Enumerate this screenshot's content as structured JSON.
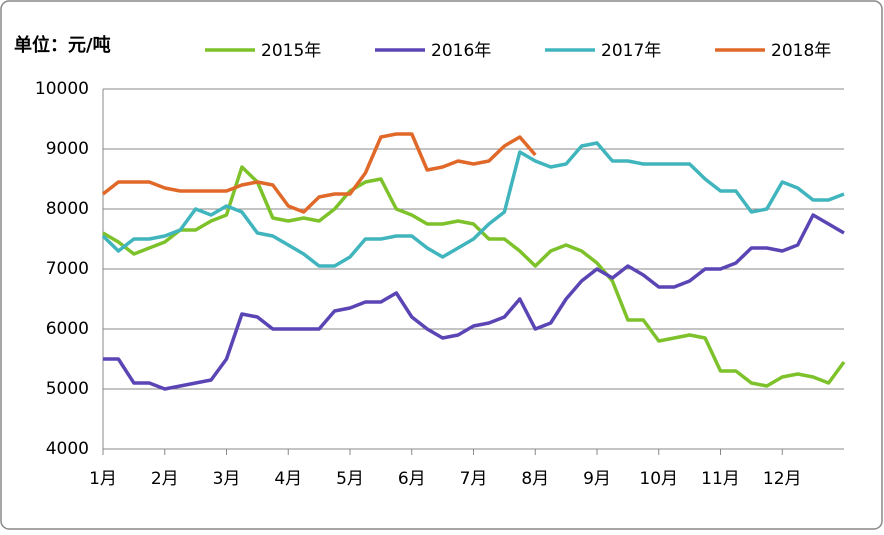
{
  "chart_data": {
    "type": "line",
    "y_label": "单位：元/吨",
    "categories": [
      "1月",
      null,
      null,
      null,
      "2月",
      null,
      null,
      null,
      "3月",
      null,
      null,
      null,
      "4月",
      null,
      null,
      null,
      "5月",
      null,
      null,
      null,
      "6月",
      null,
      null,
      null,
      "7月",
      null,
      null,
      null,
      "8月",
      null,
      null,
      null,
      "9月",
      null,
      null,
      null,
      "10月",
      null,
      null,
      null,
      "11月",
      null,
      null,
      null,
      "12月",
      null,
      null,
      null,
      null
    ],
    "series": [
      {
        "name": "2015年",
        "color": "#7dc22a",
        "values": [
          7600,
          7450,
          7250,
          7350,
          7450,
          7650,
          7650,
          7800,
          7900,
          8700,
          8450,
          7850,
          7800,
          7850,
          7800,
          8000,
          8300,
          8450,
          8500,
          8000,
          7900,
          7750,
          7750,
          7800,
          7750,
          7500,
          7500,
          7300,
          7050,
          7300,
          7400,
          7300,
          7100,
          6800,
          6150,
          6150,
          5800,
          5850,
          5900,
          5850,
          5300,
          5300,
          5100,
          5050,
          5200,
          5250,
          5200,
          5100,
          5450
        ]
      },
      {
        "name": "2016年",
        "color": "#5b45b5",
        "values": [
          5500,
          5500,
          5100,
          5100,
          5000,
          5050,
          5100,
          5150,
          5500,
          6250,
          6200,
          6000,
          6000,
          6000,
          6000,
          6300,
          6350,
          6450,
          6450,
          6600,
          6200,
          6000,
          5850,
          5900,
          6050,
          6100,
          6200,
          6500,
          6000,
          6100,
          6500,
          6800,
          7000,
          6850,
          7050,
          6900,
          6700,
          6700,
          6800,
          7000,
          7000,
          7100,
          7350,
          7350,
          7300,
          7400,
          7900,
          7750,
          7600
        ]
      },
      {
        "name": "2017年",
        "color": "#40b5bd",
        "values": [
          7550,
          7300,
          7500,
          7500,
          7550,
          7650,
          8000,
          7900,
          8050,
          7950,
          7600,
          7550,
          7400,
          7250,
          7050,
          7050,
          7200,
          7500,
          7500,
          7550,
          7550,
          7350,
          7200,
          7350,
          7500,
          7750,
          7950,
          8950,
          8800,
          8700,
          8750,
          9050,
          9100,
          8800,
          8800,
          8750,
          8750,
          8750,
          8750,
          8500,
          8300,
          8300,
          7950,
          8000,
          8450,
          8350,
          8150,
          8150,
          8250
        ]
      },
      {
        "name": "2018年",
        "color": "#e0692a",
        "values": [
          8250,
          8450,
          8450,
          8450,
          8350,
          8300,
          8300,
          8300,
          8300,
          8400,
          8450,
          8400,
          8050,
          7950,
          8200,
          8250,
          8250,
          8600,
          9200,
          9250,
          9250,
          8650,
          8700,
          8800,
          8750,
          8800,
          9050,
          9200,
          8900,
          null,
          null,
          null,
          null,
          null,
          null,
          null,
          null,
          null,
          null,
          null,
          null,
          null,
          null,
          null,
          null,
          null,
          null,
          null,
          null
        ]
      }
    ],
    "ylim": [
      4000,
      10000
    ],
    "yticks": [
      4000,
      5000,
      6000,
      7000,
      8000,
      9000,
      10000
    ],
    "grid": true
  }
}
